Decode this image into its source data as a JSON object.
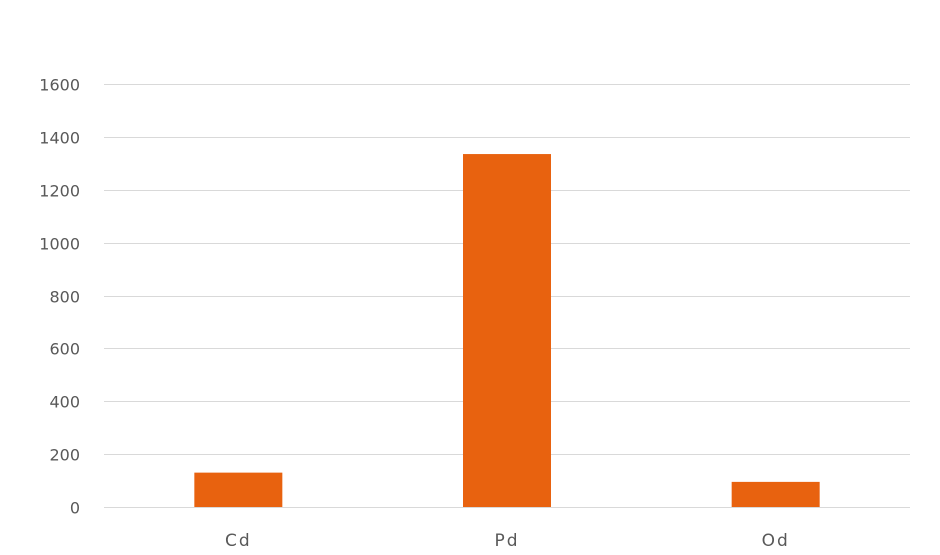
{
  "chart_data": {
    "type": "bar",
    "categories": [
      "Cd",
      "Pd",
      "Od"
    ],
    "values": [
      130,
      1335,
      95
    ],
    "ylim": [
      0,
      1600
    ],
    "yticks": [
      0,
      200,
      400,
      600,
      800,
      1000,
      1200,
      1400,
      1600
    ],
    "grid": true,
    "legend": "none",
    "colors": {
      "bar": "#e8620f",
      "grid": "#d9d9d9",
      "text": "#595959"
    }
  }
}
